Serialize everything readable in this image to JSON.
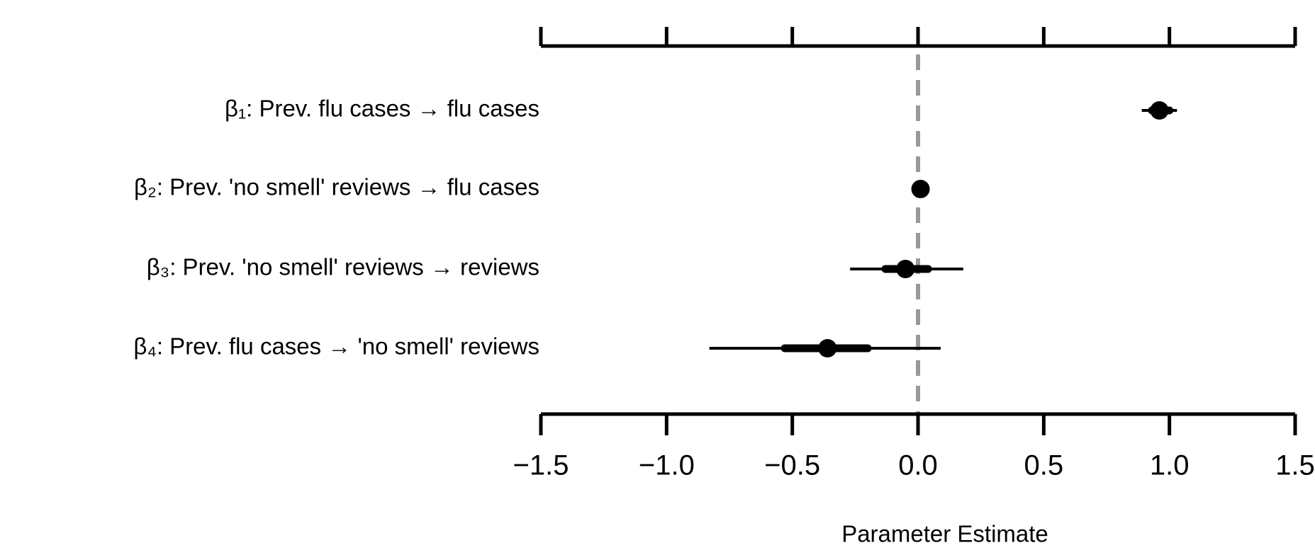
{
  "chart_data": {
    "type": "forest",
    "xlabel": "Parameter Estimate",
    "categories": [
      "β₁: Prev. flu cases →  flu cases",
      "β₂: Prev. 'no smell' reviews → flu cases",
      "β₃: Prev. 'no smell' reviews → reviews",
      "β₄: Prev. flu cases → 'no smell' reviews"
    ],
    "values": [
      0.96,
      0.01,
      -0.05,
      -0.36
    ],
    "inner_low": [
      0.93,
      0.0,
      -0.13,
      -0.53
    ],
    "inner_high": [
      1.0,
      0.02,
      0.04,
      -0.2
    ],
    "outer_low": [
      0.89,
      -0.01,
      -0.27,
      -0.83
    ],
    "outer_high": [
      1.03,
      0.03,
      0.18,
      0.09
    ],
    "color": "#000000",
    "refline": 0,
    "refline_color": "#999999",
    "xlim": [
      -1.5,
      1.5
    ],
    "xticks": [
      {
        "value": -1.5,
        "label": "−1.5"
      },
      {
        "value": -1.0,
        "label": "−1.0"
      },
      {
        "value": -0.5,
        "label": "−0.5"
      },
      {
        "value": 0.0,
        "label": "0.0"
      },
      {
        "value": 0.5,
        "label": "0.5"
      },
      {
        "value": 1.0,
        "label": "1.0"
      },
      {
        "value": 1.5,
        "label": "1.5"
      }
    ]
  }
}
